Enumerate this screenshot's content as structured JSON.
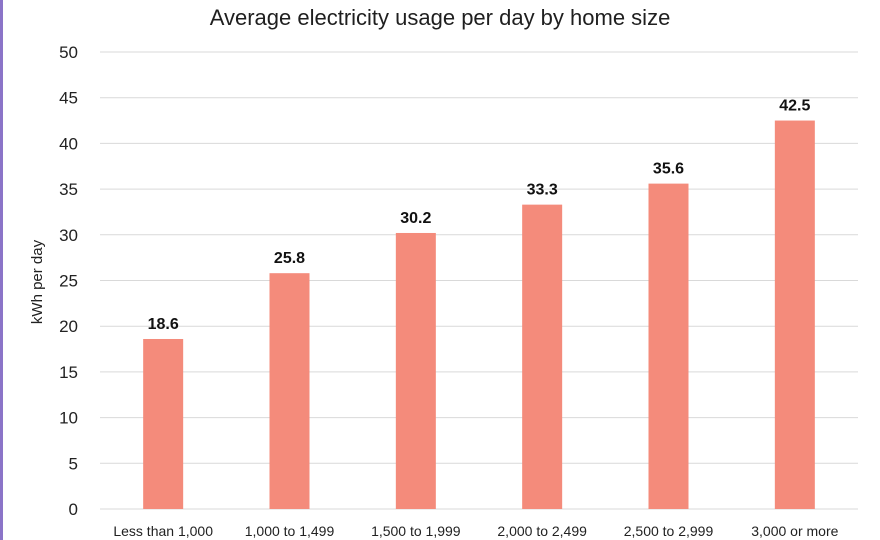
{
  "chart_data": {
    "type": "bar",
    "title": "Average electricity usage per day by home size",
    "xlabel": "",
    "ylabel": "kWh per day",
    "categories": [
      "Less than 1,000",
      "1,000 to 1,499",
      "1,500 to 1,999",
      "2,000 to 2,499",
      "2,500 to 2,999",
      "3,000 or more"
    ],
    "values": [
      18.6,
      25.8,
      30.2,
      33.3,
      35.6,
      42.5
    ],
    "value_labels": [
      "18.6",
      "25.8",
      "30.2",
      "33.3",
      "35.6",
      "42.5"
    ],
    "ylim": [
      0,
      50
    ],
    "yticks": [
      0,
      5,
      10,
      15,
      20,
      25,
      30,
      35,
      40,
      45,
      50
    ],
    "grid": true,
    "legend": "none",
    "colors": {
      "bar": "#f48b7b",
      "grid": "#d9d9d9",
      "accent_edge": "#8b74c8"
    }
  }
}
